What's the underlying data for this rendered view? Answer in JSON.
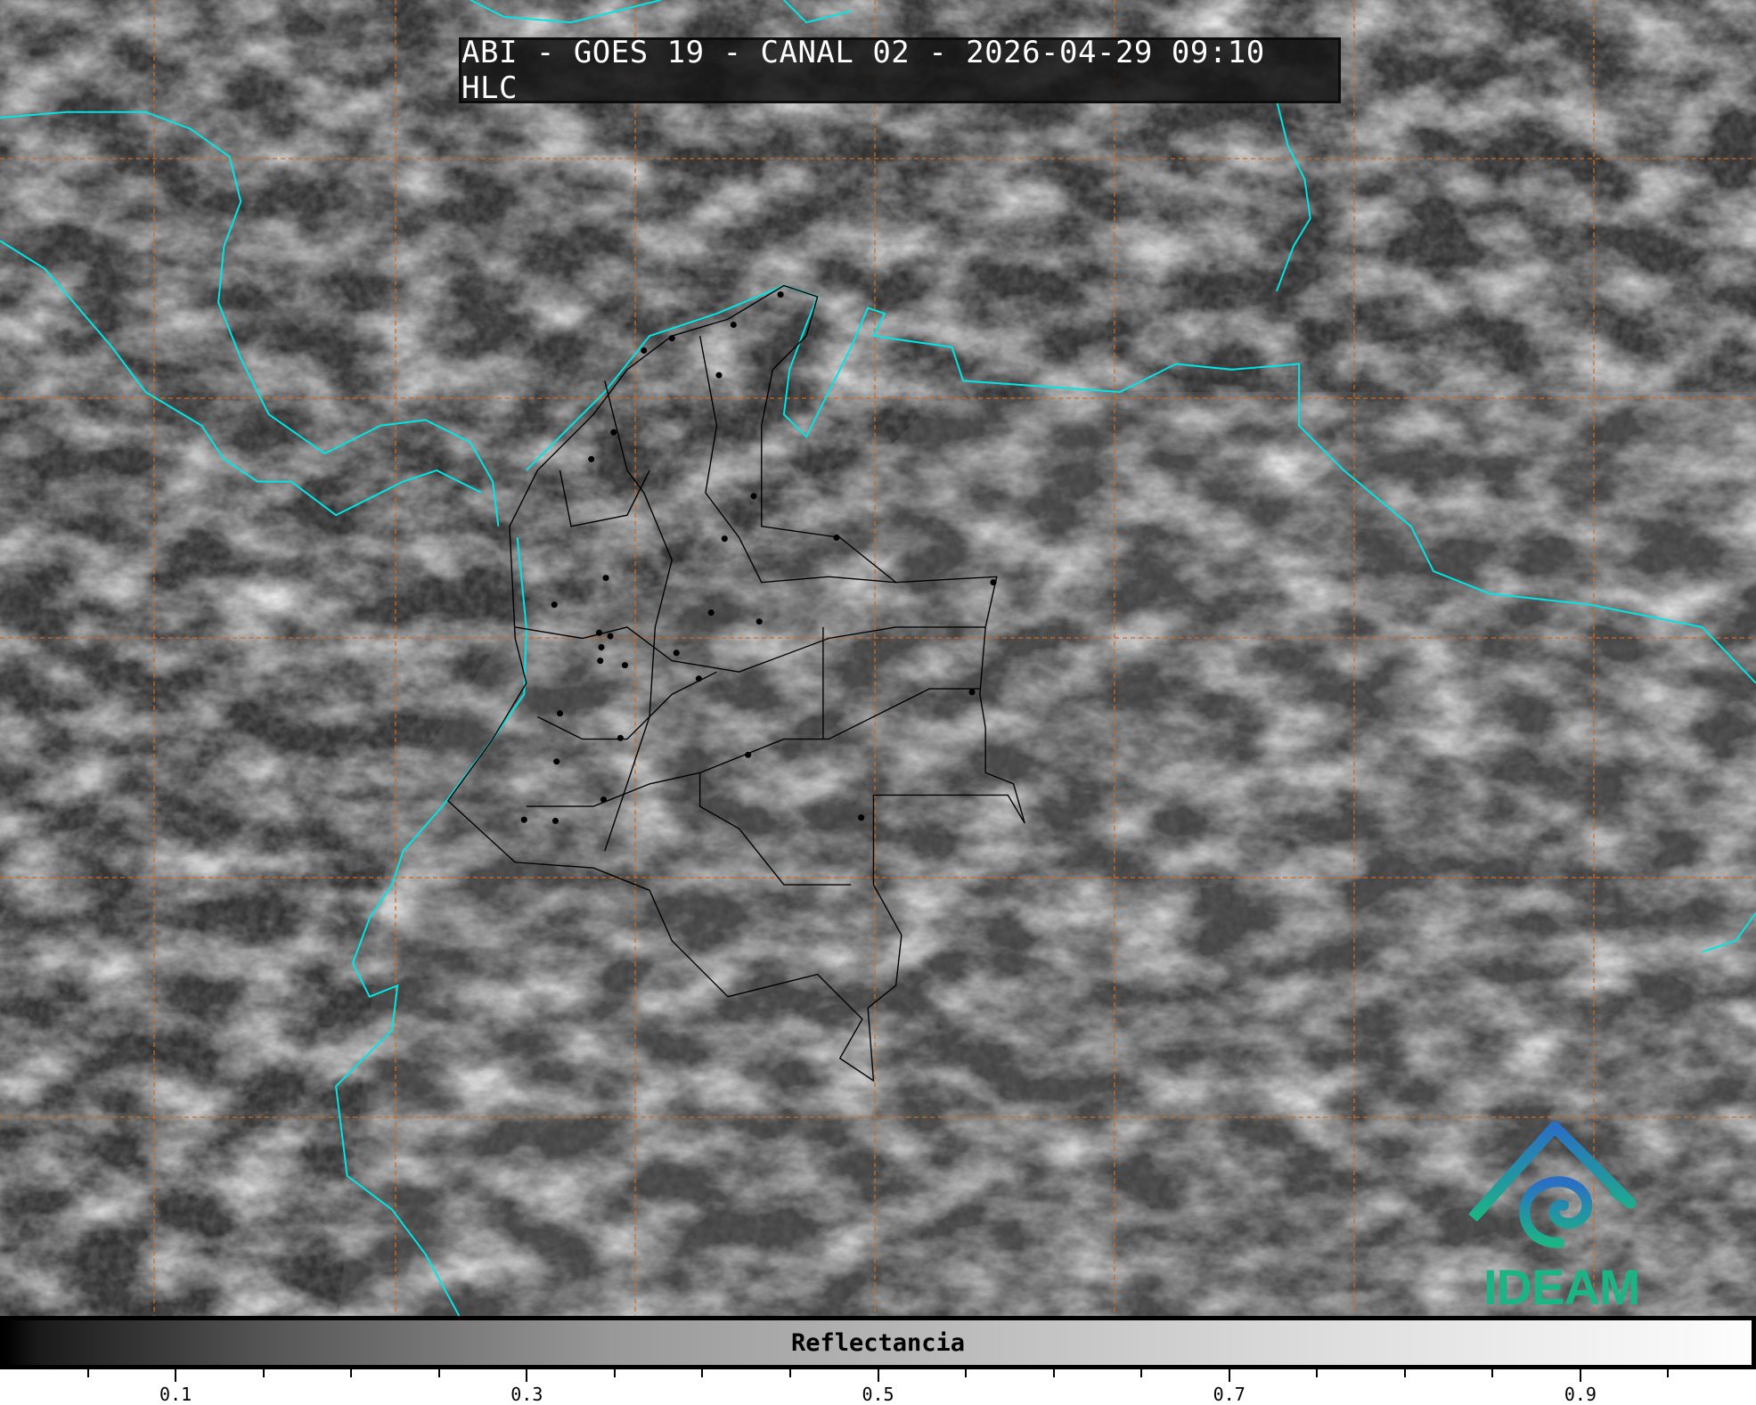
{
  "title": "ABI - GOES 19 - CANAL 02 - 2026-04-29 09:10 HLC",
  "colorbar": {
    "label": "Reflectancia",
    "range": [
      0,
      1
    ],
    "tick_step": 0.05,
    "tick_labels": [
      "0.1",
      "0.3",
      "0.5",
      "0.7",
      "0.9"
    ],
    "colormap": "grayscale black-to-white"
  },
  "logo": {
    "text": "IDEAM",
    "color": "#1db485"
  },
  "colors": {
    "coastline": "#00e5e5",
    "grid": "#d2691e",
    "borders": "#000000"
  }
}
